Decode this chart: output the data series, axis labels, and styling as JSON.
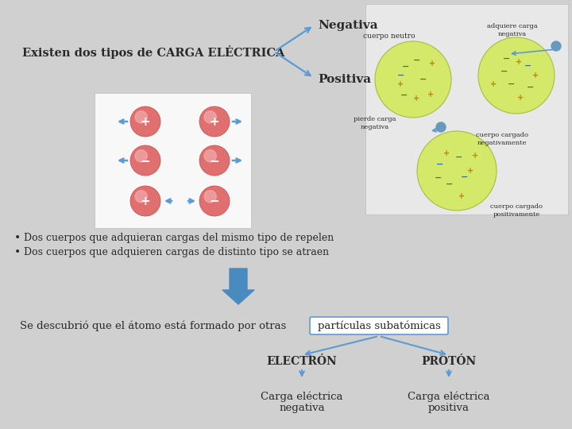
{
  "bg_color": "#d0d0d0",
  "title_text": "Existen dos tipos de CARGA ELÉCTRICA",
  "negativa": "Negativa",
  "positiva": "Positiva",
  "bullet1": "Dos cuerpos que adquieran cargas del mismo tipo de repelen",
  "bullet2": "Dos cuerpos que adquieren cargas de distinto tipo se atraen",
  "sentence": "Se descubrió que el átomo está formado por otras",
  "boxed": "partículas subatómicas",
  "electron": "ELECTRÓN",
  "proton": "PROTÓN",
  "carga_neg": "Carga eléctrica\nnegativa",
  "carga_pos": "Carga eléctrica\npositiva",
  "arrow_color": "#5b9bd5",
  "text_color": "#2a2a2a",
  "box_color": "#5b9bd5",
  "ball_color": "#e07070",
  "ball_highlight": "#f0a0a0",
  "white": "#ffffff"
}
